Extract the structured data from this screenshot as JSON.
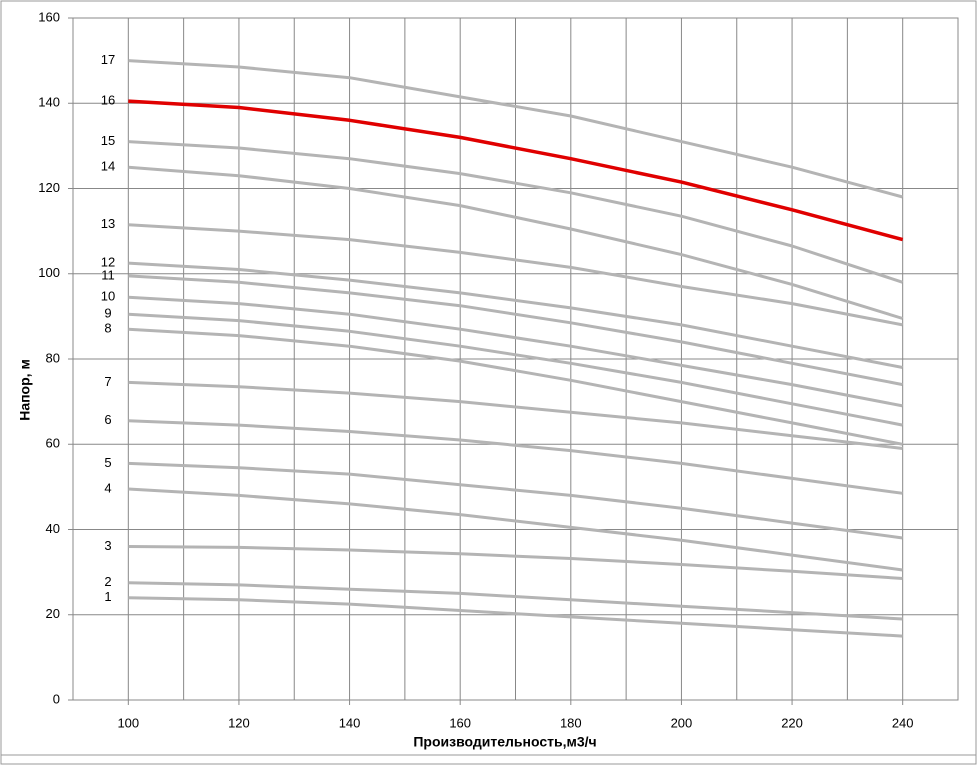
{
  "chart_data": {
    "type": "line",
    "x_label": "Производительность,м3/ч",
    "y_label": "Напор, м",
    "x": [
      100,
      120,
      140,
      160,
      180,
      200,
      220,
      240
    ],
    "xlim": [
      90,
      250
    ],
    "xticks": [
      100,
      120,
      140,
      160,
      180,
      200,
      220,
      240
    ],
    "ylim": [
      0,
      160
    ],
    "yticks": [
      0,
      20,
      40,
      60,
      80,
      100,
      120,
      140,
      160
    ],
    "grid": true,
    "series": [
      {
        "name": "1",
        "color": "#b4b4b4",
        "values": [
          24,
          23.5,
          22.5,
          21,
          19.5,
          18,
          16.5,
          15
        ]
      },
      {
        "name": "2",
        "color": "#b4b4b4",
        "values": [
          27.5,
          27,
          26,
          25,
          23.5,
          22,
          20.5,
          19
        ]
      },
      {
        "name": "3",
        "color": "#b4b4b4",
        "values": [
          36,
          35.8,
          35.2,
          34.3,
          33.2,
          31.8,
          30.2,
          28.5
        ]
      },
      {
        "name": "4",
        "color": "#b4b4b4",
        "values": [
          49.5,
          48,
          46,
          43.5,
          40.5,
          37.5,
          34,
          30.5
        ]
      },
      {
        "name": "5",
        "color": "#b4b4b4",
        "values": [
          55.5,
          54.5,
          53,
          50.5,
          48,
          45,
          41.5,
          38
        ]
      },
      {
        "name": "6",
        "color": "#b4b4b4",
        "values": [
          65.5,
          64.5,
          63,
          61,
          58.5,
          55.5,
          52,
          48.5
        ]
      },
      {
        "name": "7",
        "color": "#b4b4b4",
        "values": [
          74.5,
          73.5,
          72,
          70,
          67.5,
          65,
          62,
          59
        ]
      },
      {
        "name": "8",
        "color": "#b4b4b4",
        "values": [
          87,
          85.5,
          83,
          79.5,
          75,
          70,
          65,
          60
        ]
      },
      {
        "name": "9",
        "color": "#b4b4b4",
        "values": [
          90.5,
          89,
          86.5,
          83,
          79,
          74.5,
          69.5,
          64.5
        ]
      },
      {
        "name": "10",
        "color": "#b4b4b4",
        "values": [
          94.5,
          93,
          90.5,
          87,
          83,
          78.5,
          74,
          69
        ]
      },
      {
        "name": "11",
        "color": "#b4b4b4",
        "values": [
          99.5,
          98,
          95.5,
          92.5,
          88.5,
          84,
          79,
          74
        ]
      },
      {
        "name": "12",
        "color": "#b4b4b4",
        "values": [
          102.5,
          101,
          98.5,
          95.5,
          92,
          88,
          83,
          78
        ]
      },
      {
        "name": "13",
        "color": "#b4b4b4",
        "values": [
          111.5,
          110,
          108,
          105,
          101.5,
          97,
          93,
          88
        ]
      },
      {
        "name": "14",
        "color": "#b4b4b4",
        "values": [
          125,
          123,
          120,
          116,
          110.5,
          104.5,
          97.5,
          89.5
        ]
      },
      {
        "name": "15",
        "color": "#b4b4b4",
        "values": [
          131,
          129.5,
          127,
          123.5,
          119,
          113.5,
          106.5,
          98
        ]
      },
      {
        "name": "16",
        "color": "#e00000",
        "values": [
          140.5,
          139,
          136,
          132,
          127,
          121.5,
          115,
          108
        ]
      },
      {
        "name": "17",
        "color": "#b4b4b4",
        "values": [
          150,
          148.5,
          146,
          141.5,
          137,
          131,
          125,
          118
        ]
      }
    ]
  }
}
